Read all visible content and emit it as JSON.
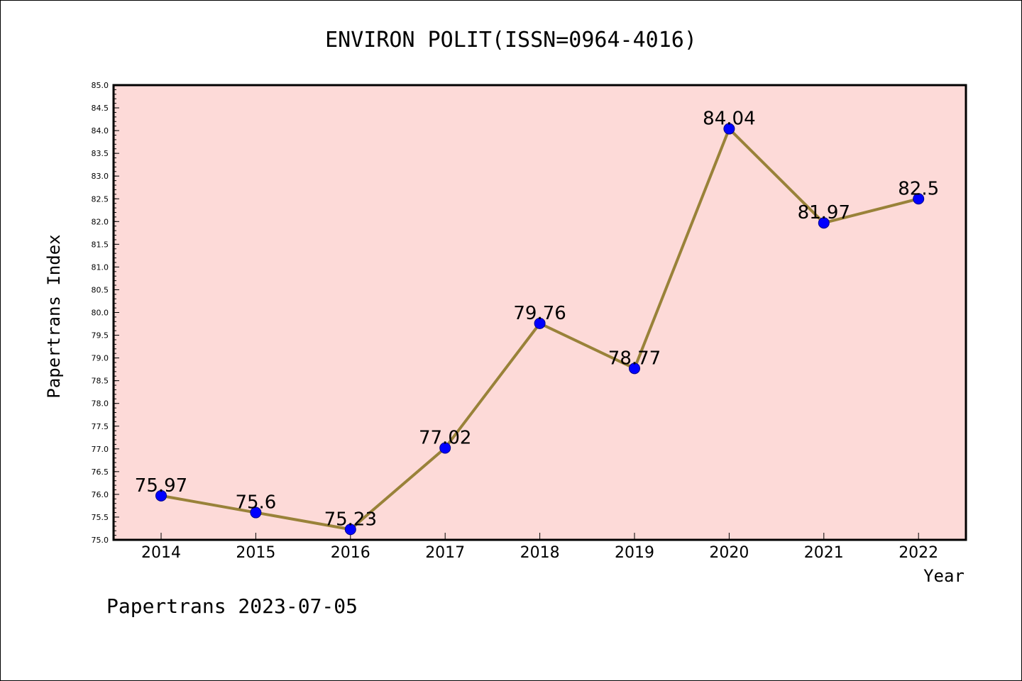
{
  "chart_data": {
    "type": "line",
    "title": "ENVIRON POLIT(ISSN=0964-4016)",
    "xlabel": "Year",
    "ylabel": "Papertrans Index",
    "categories": [
      "2014",
      "2015",
      "2016",
      "2017",
      "2018",
      "2019",
      "2020",
      "2021",
      "2022"
    ],
    "series": [
      {
        "values": [
          75.97,
          75.6,
          75.23,
          77.02,
          79.76,
          78.77,
          84.04,
          81.97,
          82.5
        ]
      }
    ],
    "data_labels": [
      "75.97",
      "75.6",
      "75.23",
      "77.02",
      "79.76",
      "78.77",
      "84.04",
      "81.97",
      "82.5"
    ],
    "ylim": [
      75.0,
      85.0
    ],
    "yticks": [
      "75.0",
      "75.5",
      "76.0",
      "76.5",
      "77.0",
      "77.5",
      "78.0",
      "78.5",
      "79.0",
      "79.5",
      "80.0",
      "80.5",
      "81.0",
      "81.5",
      "82.0",
      "82.5",
      "83.0",
      "83.5",
      "84.0",
      "84.5",
      "85.0"
    ],
    "grid": false,
    "colors": {
      "plot_background": "#fddad8",
      "line": "#998239",
      "marker": "#0000ff"
    }
  },
  "footer": "Papertrans 2023-07-05"
}
